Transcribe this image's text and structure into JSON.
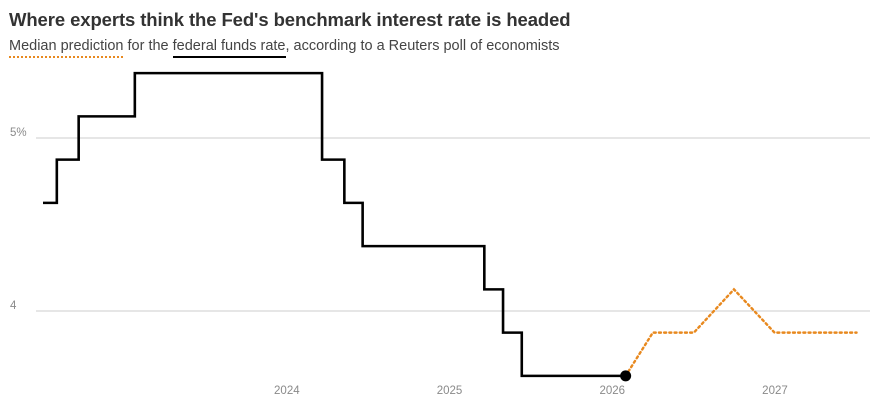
{
  "title": "Where experts think the Fed's benchmark interest rate is headed",
  "subtitle": {
    "legend_median": "Median prediction",
    "part2": " for the ",
    "legend_ffr": "federal funds rate",
    "part3": ", according to a Reuters poll of economists"
  },
  "colors": {
    "actual": "#000000",
    "forecast": "#e8891f",
    "grid": "#cccccc",
    "tick": "#8a8a8a"
  },
  "chart_data": {
    "type": "line",
    "x_type": "date",
    "ylim": [
      3.6,
      5.5
    ],
    "xlim": [
      "2023-01-01",
      "2028-01-01"
    ],
    "y_ticks": [
      {
        "value": 5,
        "label": "5%"
      },
      {
        "value": 4,
        "label": "4"
      }
    ],
    "x_ticks": [
      {
        "value": "2024-07-01",
        "label": "2024"
      },
      {
        "value": "2025-07-01",
        "label": "2025"
      },
      {
        "value": "2026-07-01",
        "label": "2026"
      },
      {
        "value": "2027-07-01",
        "label": "2027"
      }
    ],
    "series": [
      {
        "name": "federal funds rate",
        "step": true,
        "points": [
          {
            "x": "2023-01-01",
            "y": 4.625
          },
          {
            "x": "2023-02-01",
            "y": 4.875
          },
          {
            "x": "2023-03-22",
            "y": 5.125
          },
          {
            "x": "2023-07-26",
            "y": 5.375
          },
          {
            "x": "2024-09-18",
            "y": 4.875
          },
          {
            "x": "2024-11-07",
            "y": 4.625
          },
          {
            "x": "2024-12-18",
            "y": 4.375
          },
          {
            "x": "2025-09-17",
            "y": 4.125
          },
          {
            "x": "2025-10-29",
            "y": 3.875
          },
          {
            "x": "2025-12-10",
            "y": 3.625
          },
          {
            "x": "2026-07-31",
            "y": 3.625
          }
        ]
      },
      {
        "name": "Median prediction",
        "step": false,
        "dotted": true,
        "points": [
          {
            "x": "2026-07-31",
            "y": 3.625
          },
          {
            "x": "2026-09-30",
            "y": 3.875
          },
          {
            "x": "2026-12-31",
            "y": 3.875
          },
          {
            "x": "2027-03-31",
            "y": 4.125
          },
          {
            "x": "2027-06-30",
            "y": 3.875
          },
          {
            "x": "2027-12-31",
            "y": 3.875
          }
        ]
      }
    ]
  }
}
